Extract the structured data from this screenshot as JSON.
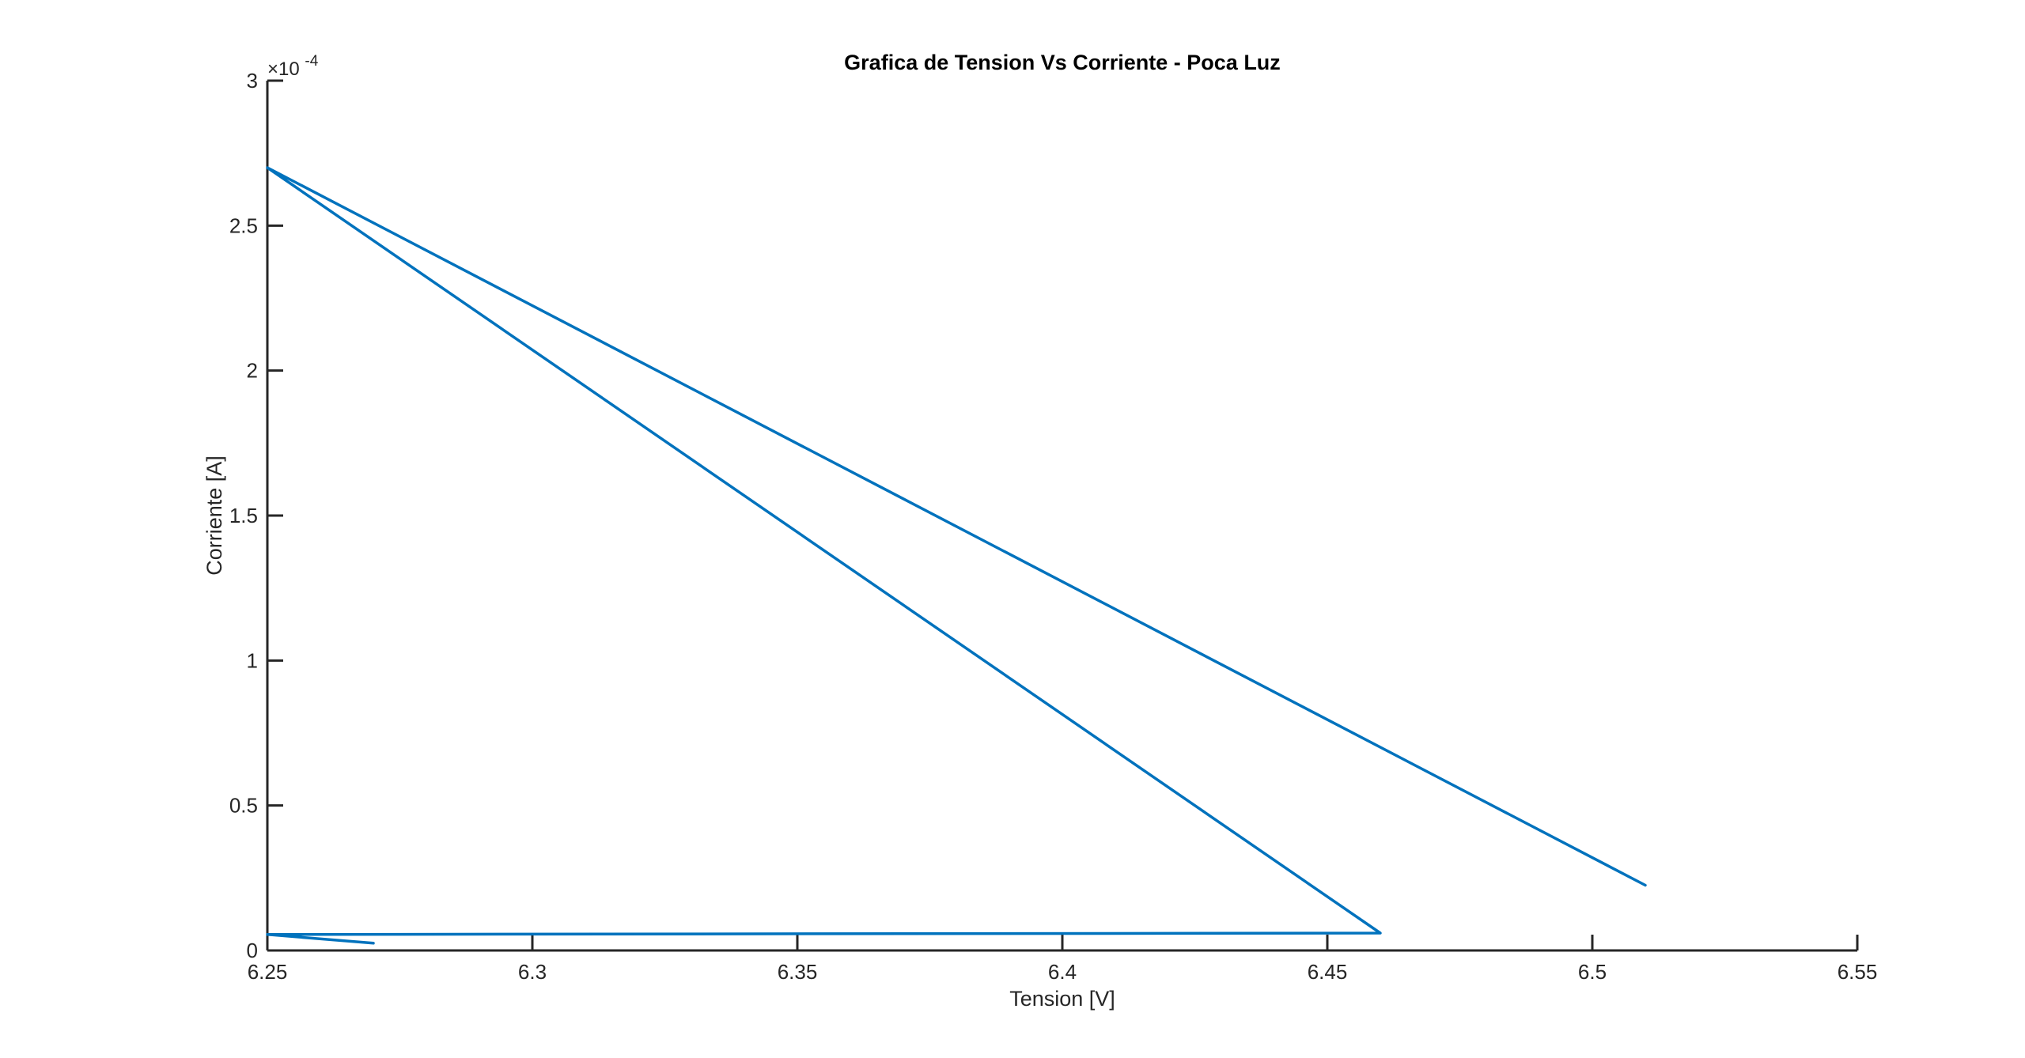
{
  "colors": {
    "series": "#0072BD",
    "axis": "#262626",
    "background": "#ffffff"
  },
  "chart_data": {
    "type": "line",
    "title": "Grafica de Tension Vs Corriente - Poca Luz",
    "xlabel": "Tension [V]",
    "ylabel": "Corriente [A]",
    "xlim": [
      6.25,
      6.55
    ],
    "ylim": [
      0,
      0.0003
    ],
    "y_exponent_base": "×10",
    "y_exponent_power": "-4",
    "x_ticks": [
      6.25,
      6.3,
      6.35,
      6.4,
      6.45,
      6.5,
      6.55
    ],
    "x_tick_labels": [
      "6.25",
      "6.3",
      "6.35",
      "6.4",
      "6.45",
      "6.5",
      "6.55"
    ],
    "y_ticks": [
      0,
      5e-05,
      0.0001,
      0.00015,
      0.0002,
      0.00025,
      0.0003
    ],
    "y_tick_labels": [
      "0",
      "0.5",
      "1",
      "1.5",
      "2",
      "2.5",
      "3"
    ],
    "grid": false,
    "legend": false,
    "series": [
      {
        "x": [
          6.27,
          6.25,
          6.46,
          6.25,
          6.51
        ],
        "y": [
          2.5e-06,
          5.5e-06,
          6e-06,
          0.00027,
          2.25e-05
        ]
      }
    ]
  }
}
